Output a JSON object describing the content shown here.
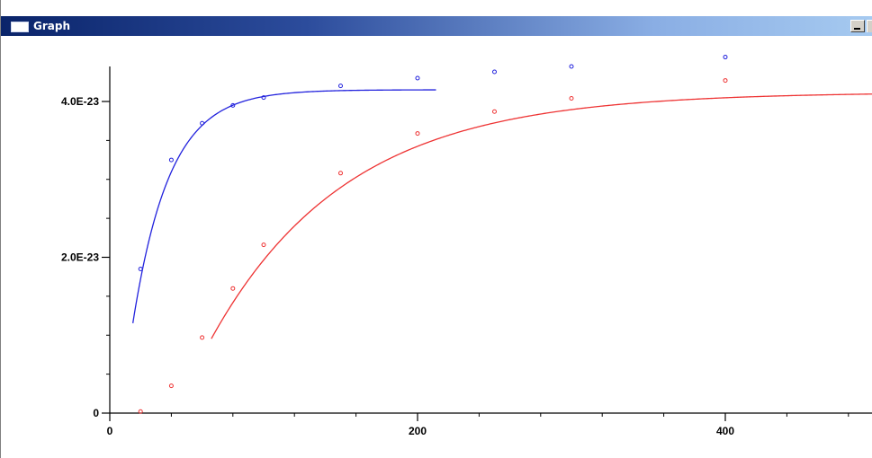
{
  "window": {
    "title": "Graph",
    "title_icon": "window-icon",
    "minimize_icon": "minimize-icon"
  },
  "chart_data": {
    "type": "scatter",
    "title": "",
    "xlabel": "",
    "ylabel": "",
    "xlim": [
      0,
      500
    ],
    "ylim": [
      0,
      4.4e-23
    ],
    "x_ticks": [
      {
        "value": 0,
        "label": "0"
      },
      {
        "value": 200,
        "label": "200"
      },
      {
        "value": 400,
        "label": "400"
      }
    ],
    "y_ticks": [
      {
        "value": 0,
        "label": "0"
      },
      {
        "value": 2e-23,
        "label": "2.0E-23"
      },
      {
        "value": 4e-23,
        "label": "4.0E-23"
      }
    ],
    "grid": false,
    "series": [
      {
        "color": "#2222dd",
        "points": [
          {
            "x": 20,
            "y": 1.85e-23
          },
          {
            "x": 40,
            "y": 3.25e-23
          },
          {
            "x": 60,
            "y": 3.72e-23
          },
          {
            "x": 80,
            "y": 3.95e-23
          },
          {
            "x": 100,
            "y": 4.05e-23
          },
          {
            "x": 150,
            "y": 4.2e-23
          },
          {
            "x": 200,
            "y": 4.3e-23
          },
          {
            "x": 250,
            "y": 4.38e-23
          },
          {
            "x": 300,
            "y": 4.45e-23
          },
          {
            "x": 400,
            "y": 4.57e-23
          }
        ],
        "fit": {
          "model": "a*(1-exp(-b*(x-c)))",
          "a": 4.15e-23,
          "b": 0.0418,
          "c": 7.2,
          "x_range": [
            15,
            212
          ]
        }
      },
      {
        "color": "#ee3333",
        "points": [
          {
            "x": 20,
            "y": 2e-25
          },
          {
            "x": 40,
            "y": 3.5e-24
          },
          {
            "x": 60,
            "y": 9.7e-24
          },
          {
            "x": 80,
            "y": 1.6e-23
          },
          {
            "x": 100,
            "y": 2.16e-23
          },
          {
            "x": 150,
            "y": 3.08e-23
          },
          {
            "x": 200,
            "y": 3.59e-23
          },
          {
            "x": 250,
            "y": 3.87e-23
          },
          {
            "x": 300,
            "y": 4.04e-23
          },
          {
            "x": 400,
            "y": 4.27e-23
          }
        ],
        "fit": {
          "model": "a*(1-exp(-b*(x-c)))",
          "a": 4.12e-23,
          "b": 0.01131,
          "c": 42.7,
          "x_range": [
            66,
            500
          ]
        }
      }
    ]
  }
}
